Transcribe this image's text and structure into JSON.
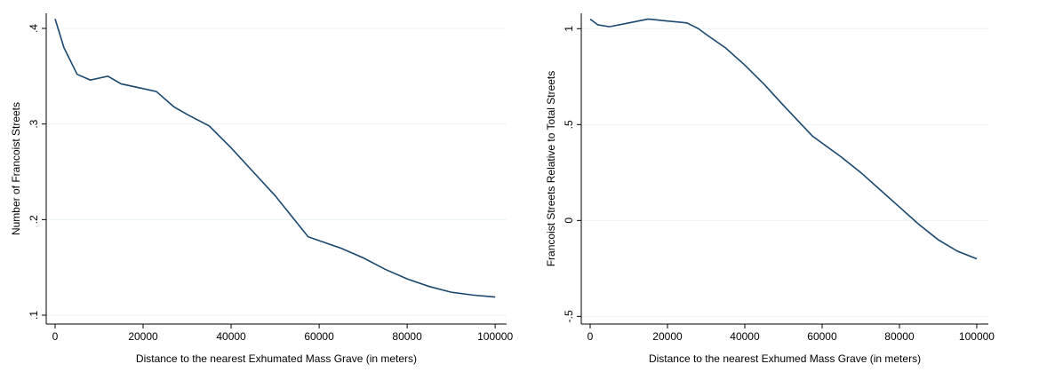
{
  "chart_data": [
    {
      "type": "line",
      "x_label": "Distance to the nearest Exhumated Mass Grave (in meters)",
      "y_label": "Number of Francoist Streets",
      "x": [
        0,
        2000,
        5000,
        8000,
        12000,
        15000,
        20000,
        23000,
        27000,
        30000,
        35000,
        40000,
        45000,
        50000,
        57500,
        65000,
        70000,
        75000,
        80000,
        85000,
        90000,
        95000,
        100000
      ],
      "series": [
        {
          "color": "#1a476f",
          "values": [
            0.41,
            0.38,
            0.352,
            0.346,
            0.35,
            0.342,
            0.337,
            0.334,
            0.318,
            0.31,
            0.298,
            0.275,
            0.25,
            0.225,
            0.182,
            0.17,
            0.16,
            0.148,
            0.138,
            0.13,
            0.124,
            0.121,
            0.119
          ]
        }
      ],
      "xlim": [
        -2020,
        102600
      ],
      "xticks": [
        0,
        20000,
        40000,
        60000,
        80000,
        100000
      ],
      "ylim": [
        0.0907,
        0.4158
      ],
      "yticks": [
        {
          "value": 0.1,
          "label": ".1"
        },
        {
          "value": 0.2,
          "label": ".2"
        },
        {
          "value": 0.3,
          "label": ".3"
        },
        {
          "value": 0.4,
          "label": ".4"
        }
      ],
      "grid": true
    },
    {
      "type": "line",
      "x_label": "Distance to the nearest Exhumed Mass Grave (in meters)",
      "y_label": "Francoist Streets Relative to Total Streets",
      "x": [
        0,
        2000,
        5000,
        10000,
        15000,
        20000,
        25000,
        28000,
        30000,
        35000,
        40000,
        45000,
        50000,
        57500,
        65000,
        70000,
        75000,
        80000,
        85000,
        90000,
        95000,
        100000
      ],
      "series": [
        {
          "color": "#1a476f",
          "values": [
            1.05,
            1.02,
            1.01,
            1.03,
            1.05,
            1.04,
            1.03,
            1.0,
            0.97,
            0.9,
            0.81,
            0.71,
            0.6,
            0.44,
            0.33,
            0.25,
            0.16,
            0.07,
            -0.02,
            -0.1,
            -0.16,
            -0.2
          ]
        }
      ],
      "xlim": [
        -2300,
        103000
      ],
      "xticks": [
        0,
        20000,
        40000,
        60000,
        80000,
        100000
      ],
      "ylim": [
        -0.54,
        1.08
      ],
      "yticks": [
        {
          "value": -0.5,
          "label": "-.5"
        },
        0,
        {
          "value": 0.5,
          "label": ".5"
        },
        1
      ],
      "grid": true
    }
  ]
}
